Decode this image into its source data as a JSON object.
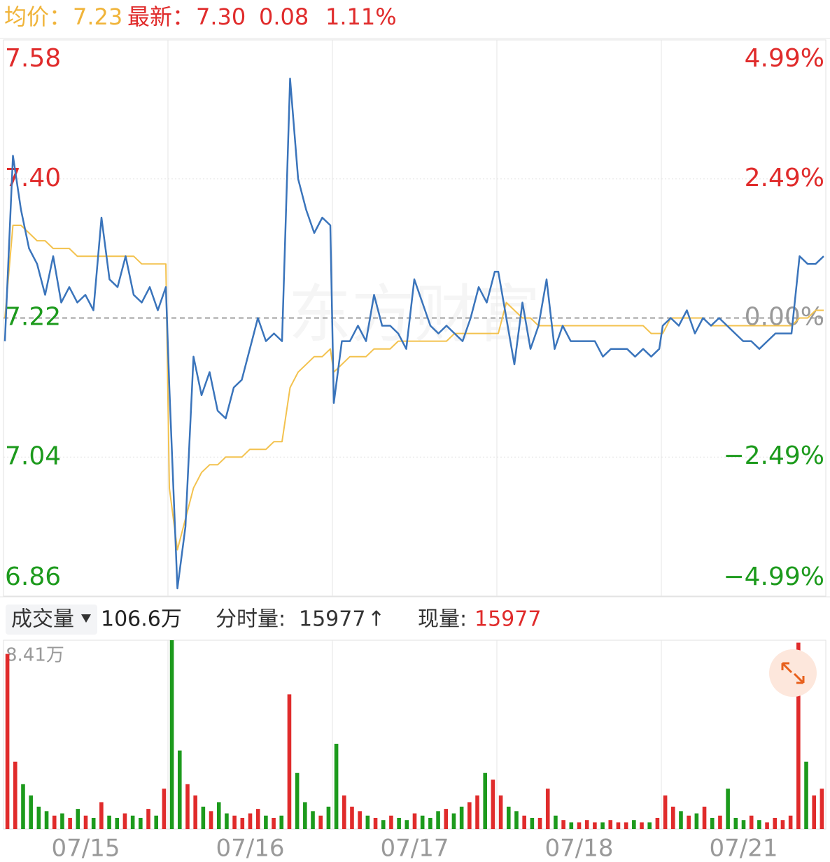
{
  "header": {
    "avg_label": "均价：",
    "avg_value": "7.23",
    "last_label": "最新：",
    "last_value": "7.30",
    "change": "0.08",
    "change_pct": "1.11%"
  },
  "chart_data": {
    "type": "intraday",
    "watermark": "东方财富",
    "ylim": [
      6.86,
      7.58
    ],
    "yticks": [
      7.58,
      {
        "value": 7.4,
        "label": "7.40"
      },
      7.22,
      7.04,
      6.86
    ],
    "y2lim": [
      -4.99,
      4.99
    ],
    "y2ticks": [
      {
        "value": 4.99,
        "label": "4.99%"
      },
      {
        "value": 2.49,
        "label": "2.49%"
      },
      {
        "value": 0,
        "label": "0.00%"
      },
      {
        "value": -2.49,
        "label": "−2.49%"
      },
      {
        "value": -4.99,
        "label": "−4.99%"
      }
    ],
    "price_color": "#3a74bb",
    "avg_color": "#f3c24e",
    "up_color": "#e02b2b",
    "down_color": "#1c9a1c",
    "flat_color": "#999999",
    "volume_ylim": [
      0,
      8.41
    ],
    "volume_yticks": [
      {
        "value": 8.41,
        "label": "8.41万"
      }
    ],
    "days": [
      {
        "date": "07/15",
        "price": [
          7.19,
          7.43,
          7.36,
          7.31,
          7.29,
          7.25,
          7.3,
          7.24,
          7.26,
          7.24,
          7.25,
          7.23,
          7.35,
          7.27,
          7.26,
          7.3,
          7.25,
          7.24,
          7.26,
          7.23,
          7.26
        ],
        "avg": [
          7.22,
          7.34,
          7.34,
          7.33,
          7.32,
          7.32,
          7.31,
          7.31,
          7.31,
          7.3,
          7.3,
          7.3,
          7.3,
          7.3,
          7.3,
          7.3,
          7.3,
          7.29,
          7.29,
          7.29,
          7.29
        ],
        "volume": [
          7.8,
          3.0,
          2.0,
          1.5,
          1.0,
          0.8,
          0.6,
          0.7,
          0.5,
          0.9,
          0.6,
          0.5,
          1.2,
          0.6,
          0.5,
          0.7,
          0.6,
          0.5,
          0.9,
          0.6,
          1.8
        ]
      },
      {
        "date": "07/16",
        "price": [
          7.13,
          6.87,
          6.95,
          7.17,
          7.12,
          7.15,
          7.1,
          7.09,
          7.13,
          7.14,
          7.18,
          7.22,
          7.19,
          7.2,
          7.19,
          7.53,
          7.4,
          7.36,
          7.33,
          7.35,
          7.34
        ],
        "avg": [
          7.0,
          6.92,
          6.96,
          7.0,
          7.02,
          7.03,
          7.03,
          7.04,
          7.04,
          7.04,
          7.05,
          7.05,
          7.05,
          7.06,
          7.06,
          7.13,
          7.15,
          7.16,
          7.17,
          7.17,
          7.18
        ],
        "volume": [
          8.41,
          3.5,
          2.0,
          1.5,
          1.0,
          0.8,
          1.2,
          0.7,
          0.6,
          0.5,
          0.7,
          0.9,
          0.6,
          0.5,
          0.6,
          6.0,
          2.5,
          1.2,
          0.8,
          0.6,
          1.0
        ]
      },
      {
        "date": "07/17",
        "price": [
          7.11,
          7.19,
          7.19,
          7.21,
          7.19,
          7.25,
          7.21,
          7.21,
          7.2,
          7.18,
          7.27,
          7.24,
          7.21,
          7.2,
          7.21,
          7.2,
          7.19,
          7.22,
          7.26,
          7.24,
          7.28
        ],
        "avg": [
          7.15,
          7.16,
          7.17,
          7.17,
          7.17,
          7.18,
          7.18,
          7.18,
          7.19,
          7.19,
          7.19,
          7.19,
          7.19,
          7.19,
          7.19,
          7.2,
          7.2,
          7.2,
          7.2,
          7.2,
          7.2
        ],
        "volume": [
          3.8,
          1.5,
          1.0,
          0.8,
          0.6,
          0.5,
          0.4,
          0.6,
          0.5,
          0.4,
          0.7,
          0.6,
          0.5,
          0.8,
          0.9,
          0.7,
          1.0,
          1.2,
          1.5,
          2.5,
          2.2
        ]
      },
      {
        "date": "07/18",
        "price": [
          7.28,
          7.22,
          7.16,
          7.24,
          7.18,
          7.21,
          7.27,
          7.18,
          7.21,
          7.19,
          7.19,
          7.19,
          7.19,
          7.17,
          7.18,
          7.18,
          7.18,
          7.17,
          7.18,
          7.17,
          7.18
        ],
        "avg": [
          7.2,
          7.24,
          7.23,
          7.22,
          7.22,
          7.21,
          7.21,
          7.21,
          7.21,
          7.21,
          7.21,
          7.21,
          7.21,
          7.21,
          7.21,
          7.21,
          7.21,
          7.21,
          7.21,
          7.2,
          7.2
        ],
        "volume": [
          1.5,
          1.0,
          0.8,
          0.6,
          0.5,
          0.5,
          1.8,
          0.6,
          0.4,
          0.3,
          0.3,
          0.4,
          0.3,
          0.3,
          0.4,
          0.3,
          0.3,
          0.4,
          0.3,
          0.3,
          0.5
        ]
      },
      {
        "date": "07/21",
        "price": [
          7.21,
          7.22,
          7.21,
          7.23,
          7.2,
          7.22,
          7.21,
          7.22,
          7.21,
          7.2,
          7.19,
          7.19,
          7.18,
          7.19,
          7.2,
          7.2,
          7.2,
          7.3,
          7.29,
          7.29,
          7.3
        ],
        "avg": [
          7.2,
          7.22,
          7.22,
          7.22,
          7.22,
          7.22,
          7.21,
          7.21,
          7.21,
          7.21,
          7.21,
          7.21,
          7.21,
          7.21,
          7.21,
          7.21,
          7.21,
          7.22,
          7.22,
          7.23,
          7.23
        ],
        "volume": [
          1.5,
          1.0,
          0.8,
          0.6,
          0.7,
          1.0,
          0.5,
          0.6,
          1.8,
          0.5,
          0.4,
          0.6,
          0.4,
          0.3,
          0.5,
          0.4,
          0.6,
          8.3,
          3.0,
          1.5,
          1.8
        ]
      }
    ]
  },
  "volume_bar": {
    "selector": "成交量",
    "total": "106.6万",
    "minute_label": "分时量:",
    "minute_value": "15977",
    "arrow": "↑",
    "now_label": "现量:",
    "now_value": "15977"
  }
}
